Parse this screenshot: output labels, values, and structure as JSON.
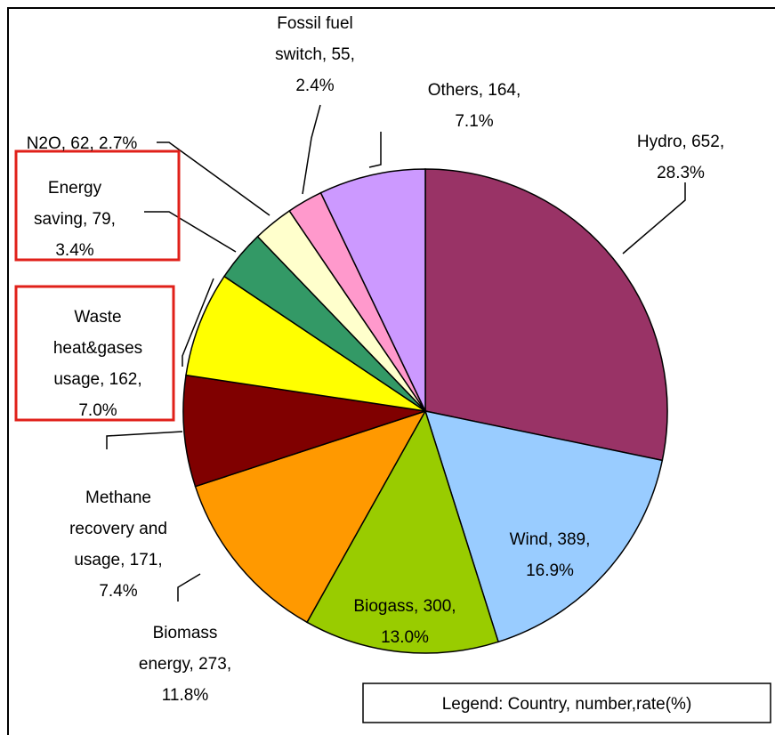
{
  "chart_data": {
    "type": "pie",
    "values": [
      652,
      389,
      300,
      273,
      171,
      162,
      79,
      62,
      55,
      164
    ],
    "value_labels": [
      "Hydro, 652, 28.3%",
      "Wind, 389, 16.9%",
      "Biogass, 300, 13.0%",
      "Biomass energy, 273, 11.8%",
      "Methane recovery and usage, 171, 7.4%",
      "Waste heat&gases usage, 162, 7.0%",
      "Energy saving, 79, 3.4%",
      "N2O, 62, 2.7%",
      "Fossil fuel switch, 55, 2.4%",
      "Others, 164, 7.1%"
    ],
    "colors": [
      "#993366",
      "#99ccff",
      "#99cc00",
      "#ff9900",
      "#800000",
      "#ffff00",
      "#339966",
      "#ffffcc",
      "#ff99cc",
      "#cc99ff"
    ],
    "note": "Legend: Country, number,rate(%)"
  }
}
